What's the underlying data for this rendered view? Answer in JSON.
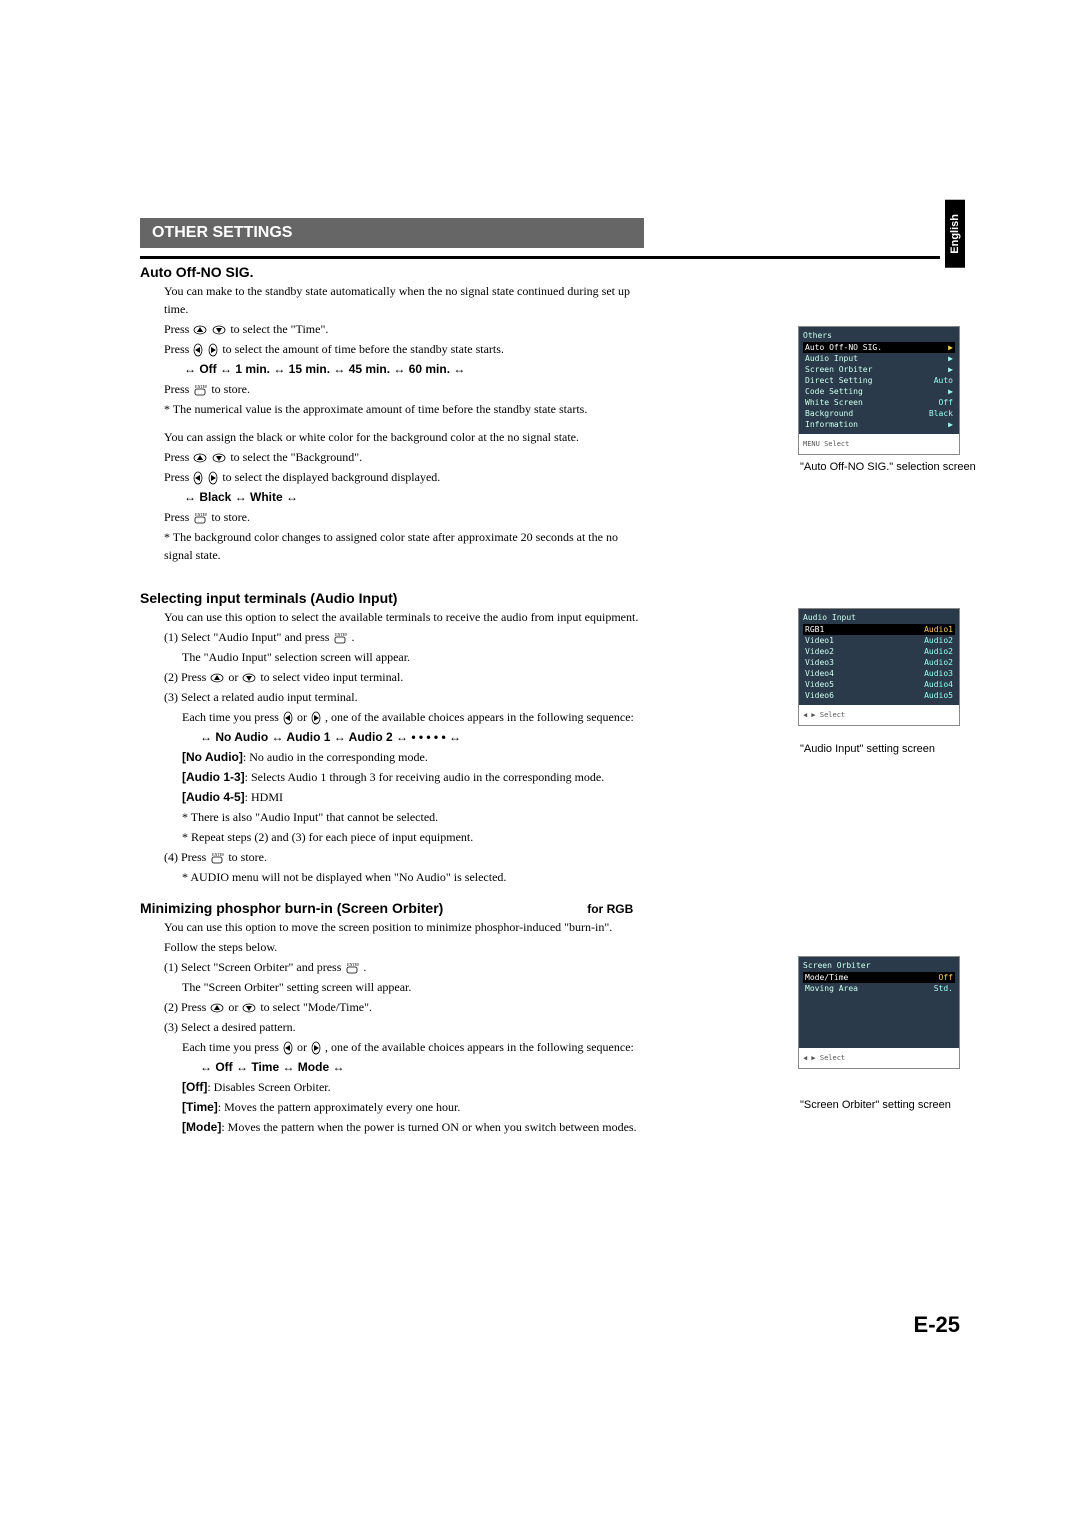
{
  "lang_tab": "English",
  "page_number": "E-25",
  "section_title": "OTHER SETTINGS",
  "colors": {
    "banner_bg": "#666666",
    "banner_fg": "#ffffff",
    "menu_bg": "#2a3a4a",
    "menu_fg": "#ccffee",
    "highlight_bg": "#000000",
    "value_color": "#f5d060"
  },
  "icons": {
    "up": "▲",
    "down": "▼",
    "left": "◀",
    "right": "▶",
    "enter": "ENTER"
  },
  "sec1": {
    "title": "Auto Off-NO SIG.",
    "p1": "You can make to the standby state automatically when the no signal state continued during set up time.",
    "p2a": "Press ",
    "p2b": " to select the \"Time\".",
    "p3a": "Press ",
    "p3b": " to select the amount of time before the standby state starts.",
    "seq1": "↔ Off ↔ 1 min. ↔ 15 min. ↔ 45 min. ↔ 60 min. ↔",
    "p4a": "Press ",
    "p4b": " to store.",
    "p5": "* The numerical value is the approximate amount of time before the standby state starts.",
    "p6": "You can assign the black or white color for the background color at the no signal state.",
    "p7a": "Press ",
    "p7b": " to select the \"Background\".",
    "p8a": "Press ",
    "p8b": " to select the displayed background displayed.",
    "seq2": "↔ Black ↔ White ↔",
    "p9": "* The background color changes to assigned color state after approximate 20 seconds at the no signal state."
  },
  "sec2": {
    "title": "Selecting input terminals (Audio Input)",
    "p1": "You can use this option to select the available terminals to receive the audio from input equipment.",
    "s1a": "(1) Select \"Audio Input\" and press ",
    "s1b": ".",
    "s1c": "The \"Audio Input\" selection screen will appear.",
    "s2a": "(2) Press ",
    "s2b": " or ",
    "s2c": " to select video input terminal.",
    "s3": "(3) Select a related audio input terminal.",
    "s3a": "Each time you press ",
    "s3b": " or ",
    "s3c": ", one of the available choices appears in the following sequence:",
    "seq": "↔ No Audio ↔ Audio 1 ↔ Audio 2 ↔ • • • • • ↔",
    "d_noaudio_l": "[No Audio]",
    "d_noaudio_r": ":   No audio in the corresponding mode.",
    "d_a13_l": "[Audio 1-3]",
    "d_a13_r": ":   Selects Audio 1 through 3 for receiving audio in the corresponding mode.",
    "d_a45_l": "[Audio 4-5]",
    "d_a45_r": ":   HDMI",
    "n1": "* There is also \"Audio Input\" that cannot be selected.",
    "n2": "* Repeat steps (2) and (3) for each piece of input equipment.",
    "s4a": "(4) Press ",
    "s4b": " to store.",
    "s4c": "* AUDIO menu will not be displayed when \"No Audio\" is selected."
  },
  "sec3": {
    "title_l": "Minimizing phosphor burn-in (Screen Orbiter)",
    "title_r": "for RGB",
    "p1": "You can use this option to move the screen position to minimize phosphor-induced \"burn-in\".",
    "p2": "Follow the steps below.",
    "s1a": "(1) Select \"Screen Orbiter\" and press ",
    "s1b": ".",
    "s1c": "The \"Screen Orbiter\" setting screen will appear.",
    "s2a": "(2) Press ",
    "s2b": " or ",
    "s2c": " to select \"Mode/Time\".",
    "s3": "(3) Select a desired pattern.",
    "s3a": "Each time you press ",
    "s3b": " or ",
    "s3c": ", one of the available choices appears in the following sequence:",
    "seq": "↔ Off ↔ Time ↔ Mode ↔",
    "d_off_l": "[Off]",
    "d_off_r": ":      Disables Screen Orbiter.",
    "d_time_l": "[Time]",
    "d_time_r": ":    Moves the pattern approximately every one hour.",
    "d_mode_l": "[Mode]",
    "d_mode_r": ":   Moves the pattern when the power is turned ON or when you switch between modes."
  },
  "shot1": {
    "title": "Others",
    "rows": [
      [
        "Auto Off-NO SIG.",
        "▶"
      ],
      [
        "Audio Input",
        "▶"
      ],
      [
        "Screen Orbiter",
        "▶"
      ],
      [
        "Direct Setting",
        "Auto"
      ],
      [
        "Code Setting",
        "▶"
      ],
      [
        "White Screen",
        "Off"
      ],
      [
        "Background",
        "Black"
      ],
      [
        "Information",
        "▶"
      ]
    ],
    "footer": "MENU Select",
    "caption": "\"Auto Off-NO SIG.\" selection screen"
  },
  "shot2": {
    "title": "Audio Input",
    "rows": [
      [
        "RGB1",
        "Audio1"
      ],
      [
        "Video1",
        "Audio2"
      ],
      [
        "Video2",
        "Audio2"
      ],
      [
        "Video3",
        "Audio2"
      ],
      [
        "Video4",
        "Audio3"
      ],
      [
        "Video5",
        "Audio4"
      ],
      [
        "Video6",
        "Audio5"
      ]
    ],
    "footer": "◀ ▶ Select",
    "caption": "\"Audio Input\" setting screen"
  },
  "shot3": {
    "title": "Screen Orbiter",
    "rows": [
      [
        "Mode/Time",
        "Off"
      ],
      [
        "Moving Area",
        "Std."
      ]
    ],
    "footer": "◀ ▶ Select",
    "caption": "\"Screen Orbiter\" setting screen"
  }
}
